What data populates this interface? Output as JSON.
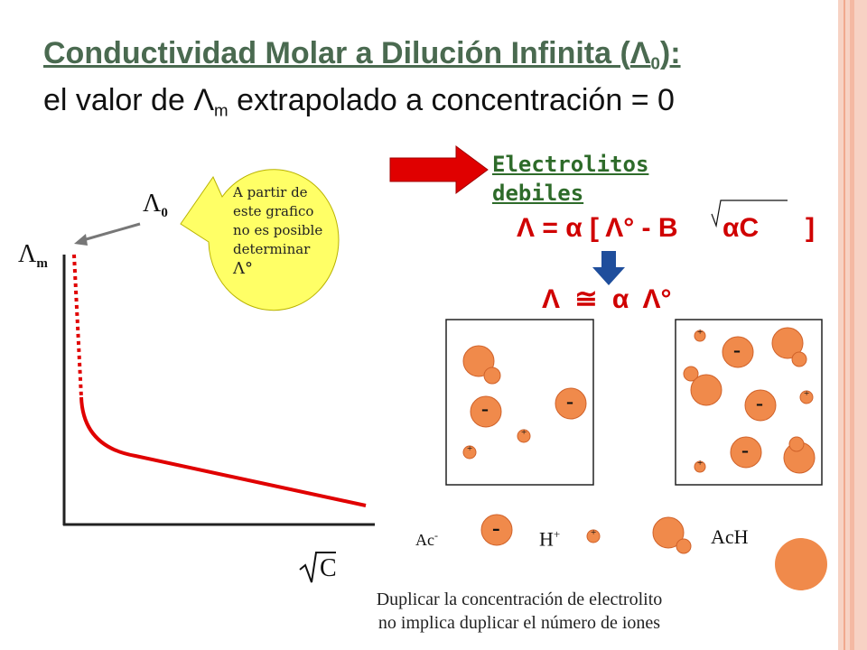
{
  "title": {
    "line1_prefix": "Conductividad Molar a Dilución Infinita (",
    "line1_symbol": "Λ",
    "line1_sub": "0",
    "line1_suffix": "):",
    "line2_prefix": "el valor de ",
    "line2_symbol": "Λ",
    "line2_sub": "m",
    "line2_suffix": " extrapolado a concentración = 0"
  },
  "graph": {
    "y_label": "Λ",
    "y_label_sub": "m",
    "x_label_root": "√",
    "x_label": "C",
    "lambda0_label": "Λ",
    "lambda0_sub": "0"
  },
  "bubble": {
    "lines": [
      "A partir de",
      "este grafico",
      "no es posible",
      "determinar",
      "Λ°"
    ]
  },
  "weak": {
    "heading_line1": "Electrolitos",
    "heading_line2": "debiles",
    "equation_left": "Λ = α [ Λ° - B",
    "equation_root": "αC",
    "equation_close": "]",
    "approx": "Λ ≅ α Λ°"
  },
  "legend": {
    "ac_label": "Ac",
    "ac_sup": "-",
    "h_label": "H",
    "h_sup": "+",
    "ach_label": "AcH",
    "minus": "-",
    "plus": "+"
  },
  "caption": {
    "line1": "Duplicar la concentración de electrolito",
    "line2": "no implica duplicar el número de iones"
  },
  "colors": {
    "accent_red": "#e00000",
    "ion_orange": "#f08a4b",
    "bubble_yellow": "#ffff66",
    "side_bar": "#f4c6b6",
    "deco_circle": "#f08a4b",
    "arrow_blue": "#1f4e9c"
  }
}
